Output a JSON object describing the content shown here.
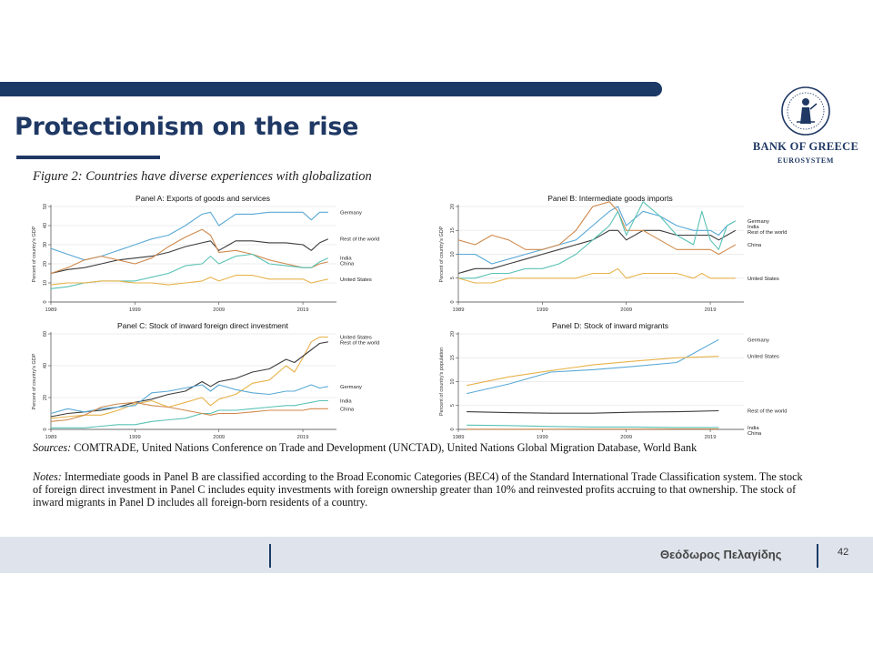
{
  "slide": {
    "title": "Protectionism on the rise",
    "logo_name": "BANK OF GREECE",
    "logo_sub": "EUROSYSTEM",
    "figure_caption": "Figure 2: Countries have diverse experiences with globalization",
    "sources_label": "Sources:",
    "sources_text": "COMTRADE, United Nations Conference on Trade and Development (UNCTAD), United Nations Global Migration Database, World Bank",
    "notes_label": "Notes:",
    "notes_text": "Intermediate goods in Panel B are classified according to the Broad Economic Categories (BEC4) of the Standard International Trade Classification system. The stock of foreign direct investment in Panel C includes equity investments with foreign ownership greater than 10% and reinvested profits accruing to that ownership. The stock of inward migrants in Panel D includes all foreign-born residents of a country.",
    "footer_author": "Θεόδωρος Πελαγίδης",
    "page_number": "42"
  },
  "colors": {
    "brand_navy": "#1b3a66",
    "germany": "#5aa9d6",
    "rest_of_world": "#3c3c3c",
    "china": "#d08a4e",
    "india": "#59c2b5",
    "united_states": "#e8b24a"
  },
  "chart_data": [
    {
      "type": "line",
      "title": "Panel A: Exports of goods and services",
      "ylabel": "Percent of country's GDP",
      "xlim": [
        1989,
        2023
      ],
      "ylim": [
        0,
        50
      ],
      "xticks": [
        1989,
        1999,
        2009,
        2019
      ],
      "yticks": [
        0,
        10,
        20,
        30,
        40,
        50
      ],
      "series": [
        {
          "name": "Germany",
          "color": "#5aa9d6",
          "x": [
            1989,
            1991,
            1993,
            1995,
            1997,
            1999,
            2001,
            2003,
            2005,
            2007,
            2008,
            2009,
            2011,
            2013,
            2015,
            2017,
            2019,
            2020,
            2021,
            2022
          ],
          "y": [
            28,
            25,
            22,
            24,
            27,
            30,
            33,
            35,
            40,
            46,
            47,
            40,
            46,
            46,
            47,
            47,
            47,
            43,
            47,
            47
          ]
        },
        {
          "name": "Rest of the world",
          "color": "#3c3c3c",
          "x": [
            1989,
            1991,
            1993,
            1995,
            1997,
            1999,
            2001,
            2003,
            2005,
            2007,
            2008,
            2009,
            2011,
            2013,
            2015,
            2017,
            2019,
            2020,
            2021,
            2022
          ],
          "y": [
            15,
            17,
            18,
            20,
            22,
            23,
            24,
            26,
            29,
            31,
            32,
            27,
            32,
            32,
            31,
            31,
            30,
            27,
            31,
            33
          ]
        },
        {
          "name": "China",
          "color": "#d08a4e",
          "x": [
            1989,
            1991,
            1993,
            1995,
            1997,
            1999,
            2001,
            2003,
            2005,
            2007,
            2008,
            2009,
            2011,
            2013,
            2015,
            2017,
            2019,
            2020,
            2021,
            2022
          ],
          "y": [
            15,
            18,
            22,
            24,
            22,
            20,
            23,
            29,
            34,
            38,
            35,
            26,
            27,
            25,
            22,
            20,
            18,
            18,
            20,
            21
          ]
        },
        {
          "name": "India",
          "color": "#59c2b5",
          "x": [
            1989,
            1991,
            1993,
            1995,
            1997,
            1999,
            2001,
            2003,
            2005,
            2007,
            2008,
            2009,
            2011,
            2013,
            2015,
            2017,
            2019,
            2020,
            2021,
            2022
          ],
          "y": [
            7,
            8,
            10,
            11,
            11,
            11,
            13,
            15,
            19,
            20,
            24,
            20,
            24,
            25,
            20,
            19,
            18,
            18,
            21,
            23
          ]
        },
        {
          "name": "United States",
          "color": "#e8b24a",
          "x": [
            1989,
            1991,
            1993,
            1995,
            1997,
            1999,
            2001,
            2003,
            2005,
            2007,
            2008,
            2009,
            2011,
            2013,
            2015,
            2017,
            2019,
            2020,
            2021,
            2022
          ],
          "y": [
            9,
            10,
            10,
            11,
            11,
            10,
            10,
            9,
            10,
            11,
            13,
            11,
            14,
            14,
            12,
            12,
            12,
            10,
            11,
            12
          ]
        }
      ]
    },
    {
      "type": "line",
      "title": "Panel B: Intermediate goods imports",
      "ylabel": "Percent of country's GDP",
      "xlim": [
        1989,
        2023
      ],
      "ylim": [
        0,
        20
      ],
      "xticks": [
        1989,
        1999,
        2009,
        2019
      ],
      "yticks": [
        0,
        5,
        10,
        15,
        20
      ],
      "series": [
        {
          "name": "Germany",
          "color": "#5aa9d6",
          "x": [
            1989,
            1991,
            1993,
            1995,
            1997,
            1999,
            2001,
            2003,
            2005,
            2007,
            2008,
            2009,
            2011,
            2013,
            2015,
            2017,
            2018,
            2019,
            2020,
            2021,
            2022
          ],
          "y": [
            10,
            10,
            8,
            9,
            10,
            11,
            12,
            13,
            16,
            19,
            20,
            16,
            19,
            18,
            16,
            15,
            15,
            15,
            14,
            16,
            17
          ]
        },
        {
          "name": "Rest of the world",
          "color": "#3c3c3c",
          "x": [
            1989,
            1991,
            1993,
            1995,
            1997,
            1999,
            2001,
            2003,
            2005,
            2007,
            2008,
            2009,
            2011,
            2013,
            2015,
            2017,
            2018,
            2019,
            2020,
            2021,
            2022
          ],
          "y": [
            6,
            7,
            7,
            8,
            9,
            10,
            11,
            12,
            13,
            15,
            15,
            13,
            15,
            15,
            14,
            14,
            14,
            14,
            13,
            14,
            15
          ]
        },
        {
          "name": "China",
          "color": "#d08a4e",
          "x": [
            1989,
            1991,
            1993,
            1995,
            1997,
            1999,
            2001,
            2003,
            2005,
            2007,
            2008,
            2009,
            2011,
            2013,
            2015,
            2017,
            2018,
            2019,
            2020,
            2021,
            2022
          ],
          "y": [
            13,
            12,
            14,
            13,
            11,
            11,
            12,
            15,
            20,
            21,
            19,
            15,
            15,
            13,
            11,
            11,
            11,
            11,
            10,
            11,
            12
          ]
        },
        {
          "name": "India",
          "color": "#59c2b5",
          "x": [
            1989,
            1991,
            1993,
            1995,
            1997,
            1999,
            2001,
            2003,
            2005,
            2007,
            2008,
            2009,
            2011,
            2013,
            2015,
            2017,
            2018,
            2019,
            2020,
            2021,
            2022
          ],
          "y": [
            5,
            5,
            6,
            6,
            7,
            7,
            8,
            10,
            13,
            16,
            19,
            14,
            21,
            18,
            14,
            12,
            19,
            13,
            11,
            16,
            17
          ]
        },
        {
          "name": "United States",
          "color": "#e8b24a",
          "x": [
            1989,
            1991,
            1993,
            1995,
            1997,
            1999,
            2001,
            2003,
            2005,
            2007,
            2008,
            2009,
            2011,
            2013,
            2015,
            2017,
            2018,
            2019,
            2020,
            2021,
            2022
          ],
          "y": [
            5,
            4,
            4,
            5,
            5,
            5,
            5,
            5,
            6,
            6,
            7,
            5,
            6,
            6,
            6,
            5,
            6,
            5,
            5,
            5,
            5
          ]
        }
      ]
    },
    {
      "type": "line",
      "title": "Panel C: Stock of inward foreign direct investment",
      "ylabel": "Percent of country's GDP",
      "xlim": [
        1989,
        2023
      ],
      "ylim": [
        0,
        60
      ],
      "xticks": [
        1989,
        1999,
        2009,
        2019
      ],
      "yticks": [
        0,
        20,
        40,
        60
      ],
      "series": [
        {
          "name": "United States",
          "color": "#e8b24a",
          "x": [
            1989,
            1991,
            1993,
            1995,
            1997,
            1999,
            2001,
            2003,
            2005,
            2007,
            2008,
            2009,
            2011,
            2013,
            2015,
            2017,
            2018,
            2019,
            2020,
            2021,
            2022
          ],
          "y": [
            7,
            8,
            9,
            9,
            12,
            16,
            18,
            14,
            17,
            20,
            15,
            19,
            22,
            29,
            31,
            40,
            36,
            45,
            55,
            58,
            58
          ]
        },
        {
          "name": "Rest of the world",
          "color": "#3c3c3c",
          "x": [
            1989,
            1991,
            1993,
            1995,
            1997,
            1999,
            2001,
            2003,
            2005,
            2007,
            2008,
            2009,
            2011,
            2013,
            2015,
            2017,
            2018,
            2019,
            2020,
            2021,
            2022
          ],
          "y": [
            8,
            10,
            11,
            12,
            14,
            17,
            19,
            22,
            24,
            30,
            27,
            30,
            32,
            36,
            38,
            44,
            42,
            46,
            50,
            54,
            55
          ]
        },
        {
          "name": "Germany",
          "color": "#5aa9d6",
          "x": [
            1989,
            1991,
            1993,
            1995,
            1997,
            1999,
            2001,
            2003,
            2005,
            2007,
            2008,
            2009,
            2011,
            2013,
            2015,
            2017,
            2018,
            2019,
            2020,
            2021,
            2022
          ],
          "y": [
            10,
            13,
            11,
            13,
            14,
            15,
            23,
            24,
            26,
            28,
            24,
            28,
            25,
            23,
            22,
            24,
            24,
            26,
            28,
            26,
            27
          ]
        },
        {
          "name": "India",
          "color": "#59c2b5",
          "x": [
            1989,
            1991,
            1993,
            1995,
            1997,
            1999,
            2001,
            2003,
            2005,
            2007,
            2008,
            2009,
            2011,
            2013,
            2015,
            2017,
            2018,
            2019,
            2020,
            2021,
            2022
          ],
          "y": [
            1,
            1,
            1,
            2,
            3,
            3,
            5,
            6,
            7,
            10,
            10,
            12,
            12,
            13,
            14,
            15,
            15,
            16,
            17,
            18,
            18
          ]
        },
        {
          "name": "China",
          "color": "#d08a4e",
          "x": [
            1989,
            1991,
            1993,
            1995,
            1997,
            1999,
            2001,
            2003,
            2005,
            2007,
            2008,
            2009,
            2011,
            2013,
            2015,
            2017,
            2018,
            2019,
            2020,
            2021,
            2022
          ],
          "y": [
            5,
            6,
            9,
            14,
            16,
            17,
            15,
            14,
            12,
            10,
            9,
            10,
            10,
            11,
            12,
            12,
            12,
            12,
            13,
            13,
            13
          ]
        }
      ]
    },
    {
      "type": "line",
      "title": "Panel D: Stock of inward migrants",
      "ylabel": "Percent of country's population",
      "xlim": [
        1989,
        2023
      ],
      "ylim": [
        0,
        20
      ],
      "xticks": [
        1989,
        1999,
        2009,
        2019
      ],
      "yticks": [
        0,
        5,
        10,
        15,
        20
      ],
      "series": [
        {
          "name": "Germany",
          "color": "#5aa9d6",
          "x": [
            1990,
            1995,
            2000,
            2005,
            2010,
            2015,
            2020
          ],
          "y": [
            7.5,
            9.5,
            12.0,
            12.5,
            13.2,
            14.0,
            18.8
          ]
        },
        {
          "name": "United States",
          "color": "#e8b24a",
          "x": [
            1990,
            1995,
            2000,
            2005,
            2010,
            2015,
            2020
          ],
          "y": [
            9.2,
            11.0,
            12.3,
            13.5,
            14.3,
            15.0,
            15.3
          ]
        },
        {
          "name": "Rest of the world",
          "color": "#3c3c3c",
          "x": [
            1990,
            1995,
            2000,
            2005,
            2010,
            2015,
            2020
          ],
          "y": [
            3.7,
            3.5,
            3.4,
            3.4,
            3.6,
            3.7,
            3.9
          ]
        },
        {
          "name": "India",
          "color": "#59c2b5",
          "x": [
            1990,
            1995,
            2000,
            2005,
            2010,
            2015,
            2020
          ],
          "y": [
            0.9,
            0.8,
            0.6,
            0.5,
            0.5,
            0.4,
            0.4
          ]
        },
        {
          "name": "China",
          "color": "#d08a4e",
          "x": [
            1990,
            1995,
            2000,
            2005,
            2010,
            2015,
            2020
          ],
          "y": [
            0.03,
            0.03,
            0.04,
            0.05,
            0.06,
            0.07,
            0.07
          ]
        }
      ]
    }
  ]
}
